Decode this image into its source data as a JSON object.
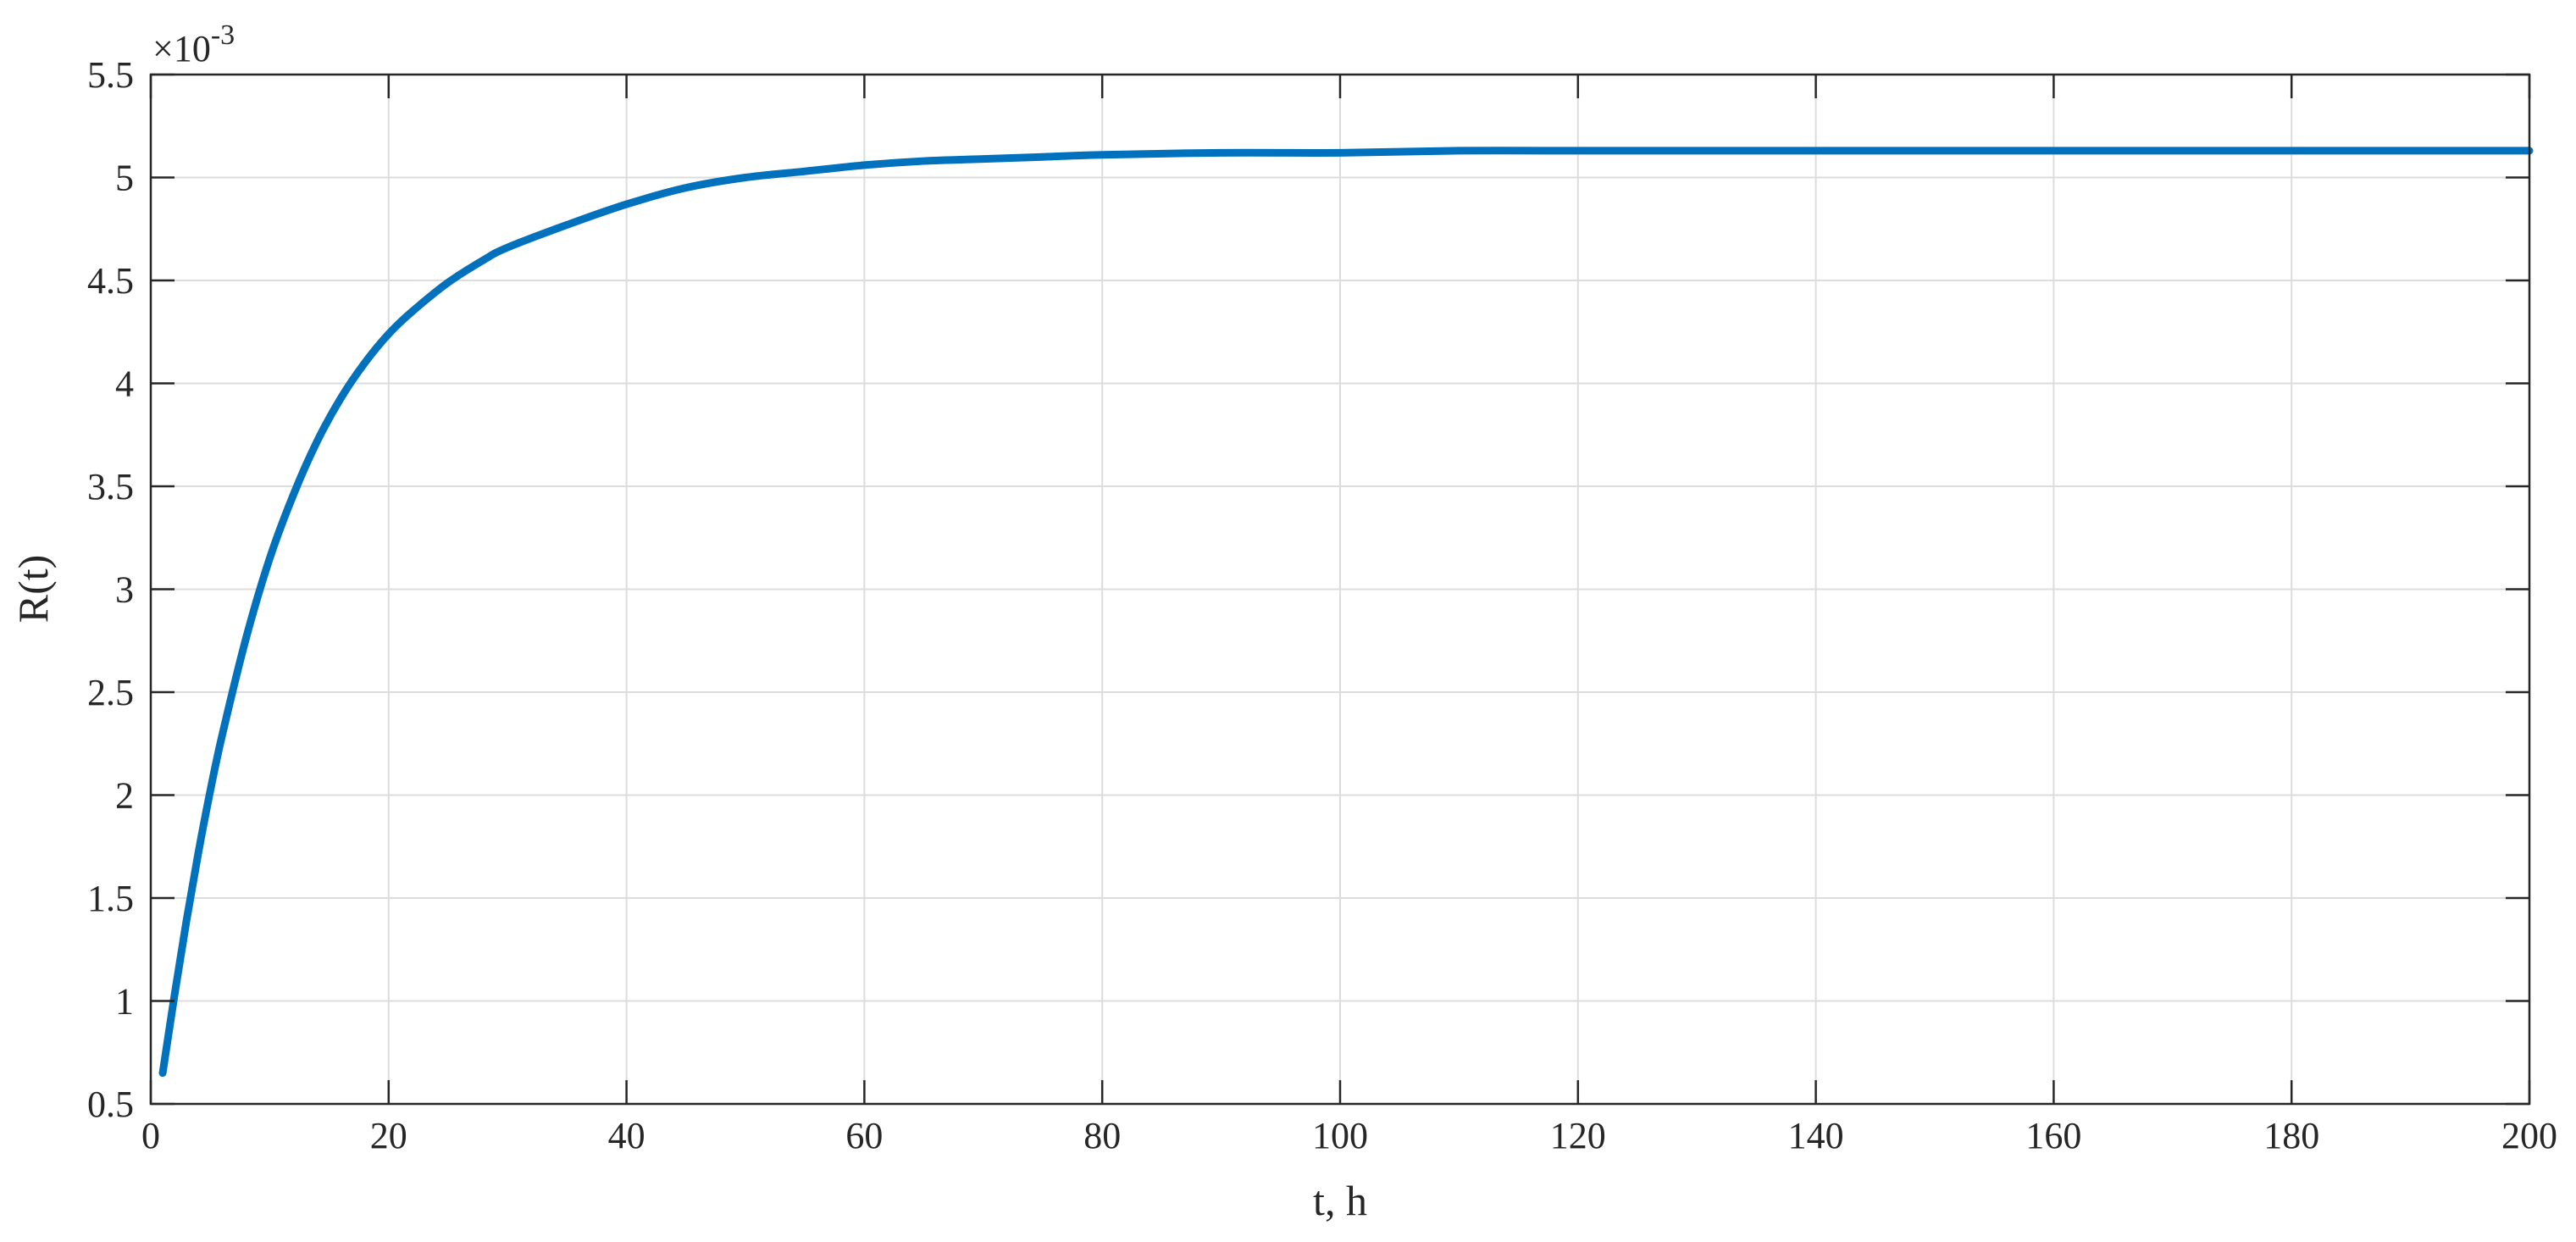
{
  "chart_data": {
    "type": "line",
    "title": "",
    "xlabel": "t, h",
    "ylabel": "R(t)",
    "y_exponent_label": "×10",
    "y_exponent_power": "-3",
    "xlim": [
      0,
      200
    ],
    "ylim": [
      0.5,
      5.5
    ],
    "grid": true,
    "x_ticks": [
      0,
      20,
      40,
      60,
      80,
      100,
      120,
      140,
      160,
      180,
      200
    ],
    "x_tick_labels": [
      "0",
      "20",
      "40",
      "60",
      "80",
      "100",
      "120",
      "140",
      "160",
      "180",
      "200"
    ],
    "y_ticks": [
      0.5,
      1,
      1.5,
      2,
      2.5,
      3,
      3.5,
      4,
      4.5,
      5,
      5.5
    ],
    "y_tick_labels": [
      "0.5",
      "1",
      "1.5",
      "2",
      "2.5",
      "3",
      "3.5",
      "4",
      "4.5",
      "5",
      "5.5"
    ],
    "line_color": "#0072BD",
    "series": [
      {
        "x": [
          1,
          2,
          3,
          4,
          5,
          6,
          8,
          10,
          12,
          14,
          16,
          18,
          20,
          22,
          25,
          28,
          30,
          35,
          40,
          45,
          50,
          55,
          60,
          65,
          70,
          75,
          80,
          90,
          100,
          110,
          120,
          130,
          140,
          150,
          160,
          170,
          180,
          190,
          200
        ],
        "values": [
          0.65,
          1.03,
          1.39,
          1.72,
          2.02,
          2.29,
          2.76,
          3.15,
          3.46,
          3.72,
          3.93,
          4.1,
          4.24,
          4.35,
          4.49,
          4.6,
          4.66,
          4.77,
          4.87,
          4.95,
          5.0,
          5.03,
          5.06,
          5.08,
          5.09,
          5.1,
          5.11,
          5.12,
          5.12,
          5.13,
          5.13,
          5.13,
          5.13,
          5.13,
          5.13,
          5.13,
          5.13,
          5.13,
          5.13
        ]
      }
    ]
  }
}
